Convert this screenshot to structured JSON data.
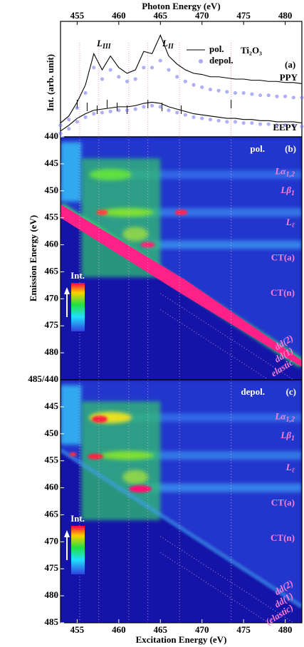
{
  "chart_data": [
    {
      "type": "line",
      "xlabel": "Photon Energy (eV)",
      "ylabel": "Int. (arb. unit)",
      "xlim": [
        453,
        482
      ],
      "xticks": [
        455,
        460,
        465,
        470,
        475,
        480
      ],
      "ylim": [
        0,
        1
      ],
      "x": [
        453,
        454,
        455,
        456,
        457,
        458,
        459,
        460,
        461,
        462,
        463,
        464,
        465,
        466,
        467,
        468,
        469,
        470,
        471,
        472,
        473,
        474,
        475,
        476,
        477,
        478,
        479,
        480,
        481,
        482
      ],
      "series": [
        {
          "name": "pol.",
          "color": "#000000",
          "style": "line",
          "values": [
            0.12,
            0.18,
            0.3,
            0.45,
            0.72,
            0.58,
            0.7,
            0.6,
            0.55,
            0.58,
            0.74,
            0.72,
            0.88,
            0.7,
            0.63,
            0.58,
            0.55,
            0.54,
            0.52,
            0.52,
            0.51,
            0.5,
            0.5,
            0.49,
            0.49,
            0.48,
            0.48,
            0.47,
            0.47,
            0.46
          ],
          "eepy_values": [
            0.05,
            0.1,
            0.16,
            0.2,
            0.23,
            0.24,
            0.25,
            0.26,
            0.26,
            0.27,
            0.29,
            0.3,
            0.29,
            0.26,
            0.24,
            0.22,
            0.2,
            0.19,
            0.18,
            0.17,
            0.16,
            0.16,
            0.15,
            0.15,
            0.14,
            0.14,
            0.13,
            0.13,
            0.13,
            0.12
          ]
        },
        {
          "name": "depol.",
          "color": "#7070f0",
          "style": "dots",
          "values": [
            0.1,
            0.15,
            0.25,
            0.38,
            0.6,
            0.5,
            0.58,
            0.52,
            0.48,
            0.5,
            0.6,
            0.6,
            0.66,
            0.58,
            0.52,
            0.48,
            0.45,
            0.43,
            0.41,
            0.4,
            0.39,
            0.38,
            0.38,
            0.37,
            0.36,
            0.36,
            0.35,
            0.35,
            0.34,
            0.34
          ],
          "eepy_values": [
            0.03,
            0.07,
            0.13,
            0.17,
            0.2,
            0.21,
            0.22,
            0.23,
            0.23,
            0.24,
            0.26,
            0.27,
            0.26,
            0.23,
            0.21,
            0.19,
            0.17,
            0.16,
            0.15,
            0.14,
            0.13,
            0.13,
            0.12,
            0.12,
            0.11,
            0.11,
            0.1,
            0.1,
            0.1,
            0.09
          ]
        }
      ],
      "curve_labels": {
        "ppy": "PPY",
        "eepy": "EEPY"
      },
      "edges": [
        {
          "text": "L",
          "sub": "III"
        },
        {
          "text": "L",
          "sub": "II"
        }
      ],
      "sample": "Ti₂O₃",
      "panel": "(a)"
    },
    {
      "type": "heatmap",
      "ylabel": "Emission Energy (eV)",
      "mode": "pol.",
      "panel": "(b)",
      "colorbar_label": "Int.",
      "xlim": [
        453,
        482
      ],
      "ylim": [
        440,
        485
      ],
      "yticks": [
        440,
        445,
        450,
        455,
        460,
        465,
        470,
        475,
        480,
        {
          "value": 485,
          "label": "485/440"
        }
      ],
      "features": [
        {
          "text": "Lα",
          "sub": "1,2"
        },
        {
          "text": "Lβ",
          "sub": "1"
        },
        {
          "text": "L",
          "sub": "ℓ"
        },
        {
          "text": "CT(a)"
        },
        {
          "text": "CT(n)"
        },
        {
          "text": "dd(2)"
        },
        {
          "text": "dd(1)"
        },
        {
          "text": "elastic"
        }
      ]
    },
    {
      "type": "heatmap",
      "xlabel": "Excitation Energy (eV)",
      "mode": "depol.",
      "panel": "(c)",
      "colorbar_label": "Int.",
      "xlim": [
        453,
        482
      ],
      "xticks": [
        455,
        460,
        465,
        470,
        475,
        480
      ],
      "ylim": [
        440,
        485
      ],
      "yticks": [
        445,
        450,
        455,
        460,
        465,
        470,
        475,
        480,
        485
      ],
      "features": [
        {
          "text": "Lα",
          "sub": "1,2"
        },
        {
          "text": "Lβ",
          "sub": "1"
        },
        {
          "text": "L",
          "sub": "ℓ"
        },
        {
          "text": "CT(a)"
        },
        {
          "text": "CT(n)"
        },
        {
          "text": "dd(2)"
        },
        {
          "text": "dd(1)"
        },
        {
          "text": "(elastic)"
        }
      ]
    }
  ]
}
